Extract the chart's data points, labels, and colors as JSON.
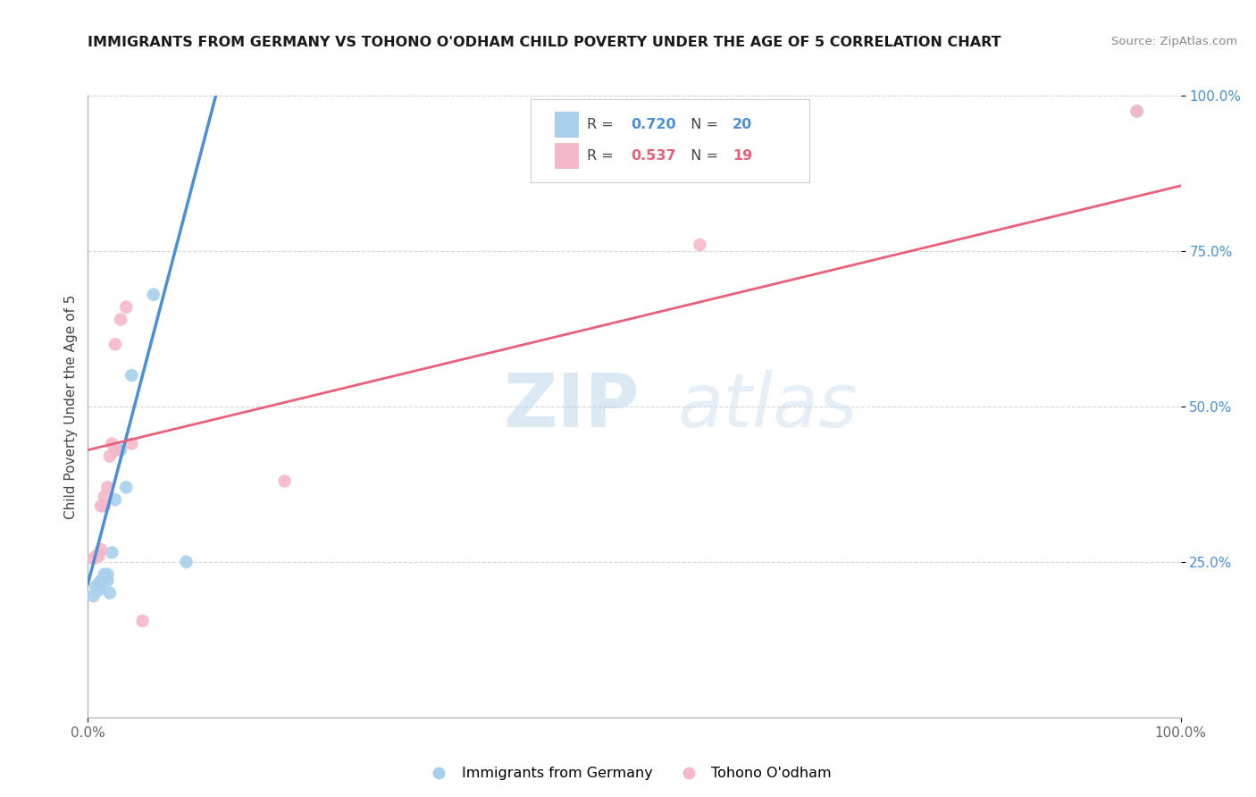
{
  "title": "IMMIGRANTS FROM GERMANY VS TOHONO O'ODHAM CHILD POVERTY UNDER THE AGE OF 5 CORRELATION CHART",
  "source": "Source: ZipAtlas.com",
  "ylabel": "Child Poverty Under the Age of 5",
  "xlim": [
    0,
    1.0
  ],
  "ylim": [
    0,
    1.0
  ],
  "ytick_positions": [
    0.25,
    0.5,
    0.75,
    1.0
  ],
  "ytick_labels": [
    "25.0%",
    "50.0%",
    "75.0%",
    "100.0%"
  ],
  "blue_r": "0.720",
  "blue_n": "20",
  "pink_r": "0.537",
  "pink_n": "19",
  "blue_color": "#A8D0EC",
  "pink_color": "#F5B8C8",
  "blue_line_color": "#4A90D9",
  "pink_line_color": "#E8607A",
  "legend_label_blue": "Immigrants from Germany",
  "legend_label_pink": "Tohono O'odham",
  "watermark_ZIP": "ZIP",
  "watermark_atlas": "atlas",
  "blue_scatter_x": [
    0.005,
    0.007,
    0.01,
    0.01,
    0.012,
    0.012,
    0.015,
    0.015,
    0.018,
    0.018,
    0.02,
    0.022,
    0.025,
    0.025,
    0.03,
    0.035,
    0.04,
    0.06,
    0.09,
    0.96
  ],
  "blue_scatter_y": [
    0.195,
    0.21,
    0.205,
    0.215,
    0.215,
    0.22,
    0.225,
    0.23,
    0.22,
    0.23,
    0.2,
    0.265,
    0.35,
    0.43,
    0.43,
    0.37,
    0.55,
    0.68,
    0.25,
    0.975
  ],
  "pink_scatter_x": [
    0.005,
    0.008,
    0.01,
    0.012,
    0.012,
    0.015,
    0.015,
    0.018,
    0.02,
    0.022,
    0.025,
    0.025,
    0.03,
    0.035,
    0.04,
    0.05,
    0.18,
    0.56,
    0.96
  ],
  "pink_scatter_y": [
    0.255,
    0.26,
    0.26,
    0.27,
    0.34,
    0.34,
    0.355,
    0.37,
    0.42,
    0.44,
    0.43,
    0.6,
    0.64,
    0.66,
    0.44,
    0.155,
    0.38,
    0.76,
    0.975
  ],
  "blue_line_x0": 0.0,
  "blue_line_y0": 0.215,
  "blue_line_x1": 0.12,
  "blue_line_y1": 1.02,
  "pink_line_x0": 0.0,
  "pink_line_y0": 0.43,
  "pink_line_x1": 1.0,
  "pink_line_y1": 0.855
}
